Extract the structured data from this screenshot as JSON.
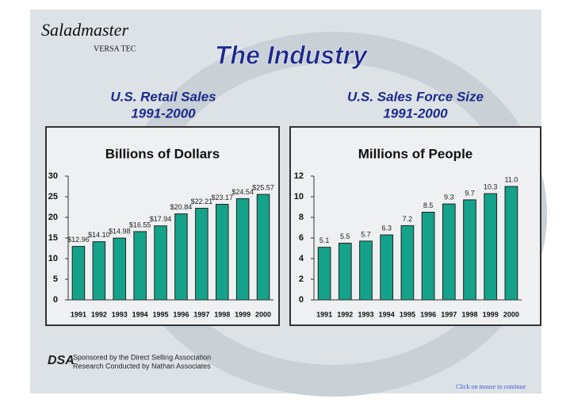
{
  "slide": {
    "logo_script": "Saladmaster",
    "logo_brand": "VERSA TEC",
    "title": "The Industry",
    "sponsor_logo": "DSA",
    "sponsor_lines": [
      "Sponsored by the Direct Selling Association",
      "Research Conducted by Nathan Associates"
    ],
    "footer": "Click on mouse to continue"
  },
  "chart_data": [
    {
      "type": "bar",
      "heading": [
        "U.S. Retail Sales",
        "1991-2000"
      ],
      "title": "Billions of Dollars",
      "categories": [
        "1991",
        "1992",
        "1993",
        "1994",
        "1995",
        "1996",
        "1997",
        "1998",
        "1999",
        "2000"
      ],
      "values": [
        12.96,
        14.1,
        14.98,
        16.55,
        17.94,
        20.84,
        22.21,
        23.17,
        24.54,
        25.57
      ],
      "value_labels": [
        "$12.96",
        "$14.10",
        "$14.98",
        "$16.55",
        "$17.94",
        "$20.84",
        "$22.21",
        "$23.17",
        "$24.54",
        "$25.57"
      ],
      "color": "#14a28a",
      "ylim": [
        0,
        30
      ],
      "yticks": [
        0,
        5,
        10,
        15,
        20,
        25,
        30
      ],
      "grid": false
    },
    {
      "type": "bar",
      "heading": [
        "U.S. Sales Force Size",
        "1991-2000"
      ],
      "title": "Millions of People",
      "categories": [
        "1991",
        "1992",
        "1993",
        "1994",
        "1995",
        "1996",
        "1997",
        "1998",
        "1999",
        "2000"
      ],
      "values": [
        5.1,
        5.5,
        5.7,
        6.3,
        7.2,
        8.5,
        9.3,
        9.7,
        10.3,
        11.0
      ],
      "value_labels": [
        "5.1",
        "5.5",
        "5.7",
        "6.3",
        "7.2",
        "8.5",
        "9.3",
        "9.7",
        "10.3",
        "11.0"
      ],
      "color": "#14a28a",
      "ylim": [
        0,
        12
      ],
      "yticks": [
        0,
        2,
        4,
        6,
        8,
        10,
        12
      ],
      "grid": false
    }
  ]
}
